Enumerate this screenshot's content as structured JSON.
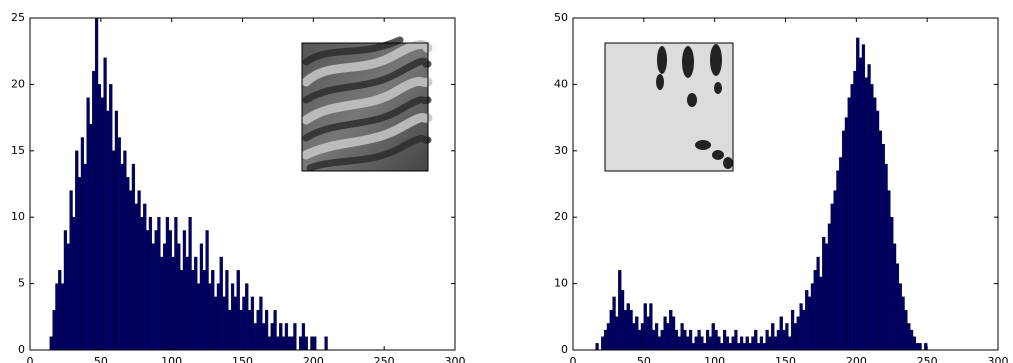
{
  "chart_data": [
    {
      "type": "histogram",
      "color": "#000070",
      "bins": [
        14,
        16,
        18,
        20,
        22,
        24,
        26,
        28,
        30,
        32,
        34,
        36,
        38,
        40,
        42,
        44,
        46,
        48,
        50,
        52,
        54,
        56,
        58,
        60,
        62,
        64,
        66,
        68,
        70,
        72,
        74,
        76,
        78,
        80,
        82,
        84,
        86,
        88,
        90,
        92,
        94,
        96,
        98,
        100,
        102,
        104,
        106,
        108,
        110,
        112,
        114,
        116,
        118,
        120,
        122,
        124,
        126,
        128,
        130,
        132,
        134,
        136,
        138,
        140,
        142,
        144,
        146,
        148,
        150,
        152,
        154,
        156,
        158,
        160,
        162,
        164,
        166,
        168,
        170,
        172,
        174,
        176,
        178,
        180,
        182,
        184,
        186,
        188,
        190,
        192,
        194,
        196,
        198,
        200,
        202,
        204,
        206,
        208,
        210
      ],
      "values": [
        1,
        3,
        5,
        6,
        5,
        9,
        8,
        12,
        10,
        15,
        13,
        16,
        14,
        19,
        17,
        21,
        25,
        20,
        19,
        22,
        18,
        20,
        15,
        18,
        16,
        14,
        15,
        13,
        12,
        14,
        11,
        12,
        10,
        11,
        9,
        10,
        8,
        9,
        10,
        7,
        8,
        10,
        9,
        7,
        10,
        8,
        6,
        9,
        7,
        10,
        6,
        7,
        5,
        8,
        6,
        9,
        5,
        6,
        4,
        5,
        7,
        4,
        6,
        3,
        5,
        4,
        6,
        3,
        4,
        5,
        3,
        4,
        2,
        3,
        4,
        2,
        3,
        1,
        2,
        3,
        1,
        2,
        1,
        2,
        1,
        1,
        2,
        0,
        1,
        2,
        1,
        0,
        1,
        1,
        0,
        0,
        0,
        1
      ],
      "xlim": [
        0,
        300
      ],
      "xticks": [
        0,
        50,
        100,
        150,
        200,
        250,
        300
      ],
      "ylim": [
        0,
        25
      ],
      "yticks": [
        0,
        5,
        10,
        15,
        20,
        25
      ]
    },
    {
      "type": "histogram",
      "color": "#000070",
      "bins": [
        16,
        18,
        20,
        22,
        24,
        26,
        28,
        30,
        32,
        34,
        36,
        38,
        40,
        42,
        44,
        46,
        48,
        50,
        52,
        54,
        56,
        58,
        60,
        62,
        64,
        66,
        68,
        70,
        72,
        74,
        76,
        78,
        80,
        82,
        84,
        86,
        88,
        90,
        92,
        94,
        96,
        98,
        100,
        102,
        104,
        106,
        108,
        110,
        112,
        114,
        116,
        118,
        120,
        122,
        124,
        126,
        128,
        130,
        132,
        134,
        136,
        138,
        140,
        142,
        144,
        146,
        148,
        150,
        152,
        154,
        156,
        158,
        160,
        162,
        164,
        166,
        168,
        170,
        172,
        174,
        176,
        178,
        180,
        182,
        184,
        186,
        188,
        190,
        192,
        194,
        196,
        198,
        200,
        202,
        204,
        206,
        208,
        210,
        212,
        214,
        216,
        218,
        220,
        222,
        224,
        226,
        228,
        230,
        232,
        234,
        236,
        238,
        240,
        242,
        244,
        246,
        248,
        250
      ],
      "values": [
        1,
        0,
        2,
        3,
        4,
        6,
        8,
        5,
        12,
        9,
        6,
        7,
        6,
        4,
        5,
        3,
        4,
        7,
        5,
        7,
        3,
        4,
        2,
        3,
        5,
        4,
        6,
        5,
        3,
        2,
        4,
        3,
        2,
        3,
        1,
        2,
        3,
        2,
        1,
        3,
        2,
        4,
        3,
        2,
        1,
        3,
        2,
        1,
        2,
        3,
        1,
        2,
        1,
        2,
        1,
        2,
        3,
        1,
        2,
        1,
        3,
        2,
        4,
        2,
        3,
        5,
        3,
        4,
        2,
        6,
        4,
        5,
        7,
        6,
        9,
        8,
        10,
        12,
        14,
        11,
        17,
        16,
        19,
        22,
        24,
        27,
        29,
        33,
        35,
        38,
        40,
        42,
        47,
        44,
        46,
        41,
        43,
        40,
        38,
        36,
        33,
        31,
        28,
        24,
        20,
        16,
        13,
        10,
        8,
        6,
        4,
        3,
        2,
        1,
        1,
        0,
        1
      ],
      "xlim": [
        0,
        300
      ],
      "xticks": [
        0,
        50,
        100,
        150,
        200,
        250,
        300
      ],
      "ylim": [
        0,
        50
      ],
      "yticks": [
        0,
        10,
        20,
        30,
        40,
        50
      ]
    }
  ]
}
